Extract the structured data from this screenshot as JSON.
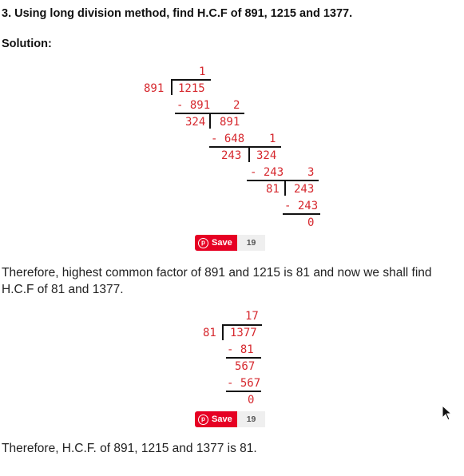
{
  "question": "3. Using long division method, find H.C.F of 891, 1215 and 1377.",
  "solution_label": "Solution:",
  "division1": {
    "q1": "1",
    "divisor1": "891",
    "dividend1": "1215",
    "sub1": "- 891",
    "q2": "2",
    "r1": "324",
    "d2": "891",
    "sub2": "- 648",
    "q3": "1",
    "r2": "243",
    "d3": "324",
    "sub3": "- 243",
    "q4": "3",
    "r3": "81",
    "d4": "243",
    "sub4": "- 243",
    "r4": "0"
  },
  "save_widget_1": {
    "label": "Save",
    "count": "19"
  },
  "para1": "Therefore, highest common factor of 891 and 1215 is 81 and now we shall find H.C.F of 81 and 1377.",
  "division2": {
    "quotient": "17",
    "divisor": "81",
    "dividend": "1377",
    "sub1": "- 81",
    "rem1": "567",
    "sub2": "- 567",
    "rem2": "0"
  },
  "save_widget_2": {
    "label": "Save",
    "count": "19"
  },
  "para2": "Therefore, H.C.F. of 891, 1215 and 1377 is 81."
}
